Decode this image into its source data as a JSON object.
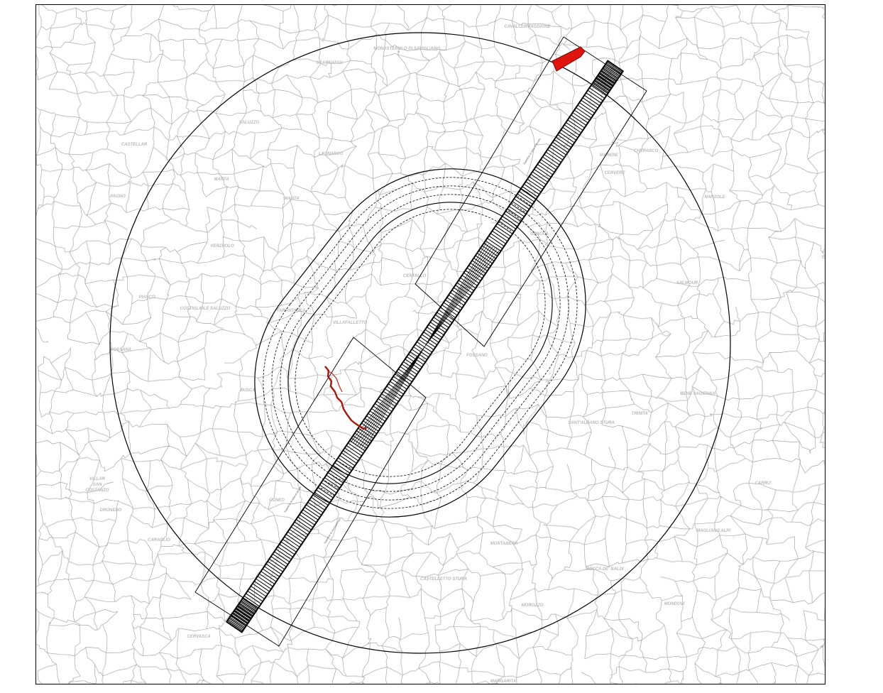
{
  "map": {
    "colors": {
      "boundary": "#a8a8a8",
      "boundary_light": "#d2d2d2",
      "surface_line": "#000000",
      "highlight": "#e0140f",
      "highlight_dark": "#a31a10",
      "label": "#b9b9b9"
    },
    "labels": [
      {
        "id": "cavallermaggiore",
        "text": "CAVALLERMAGGIORE"
      },
      {
        "id": "monasterolo",
        "text": "MONASTEROLO DI SAVIGLIANO"
      },
      {
        "id": "scarnafigi",
        "text": "SCARNAFIGI"
      },
      {
        "id": "saluzzo",
        "text": "SALUZZO"
      },
      {
        "id": "castellar",
        "text": "CASTELLAR"
      },
      {
        "id": "lagnasco",
        "text": "LAGNASCO"
      },
      {
        "id": "manta",
        "text": "MANTA"
      },
      {
        "id": "manta2",
        "text": "MANTA"
      },
      {
        "id": "pagno",
        "text": "PAGNO"
      },
      {
        "id": "verzuolo",
        "text": "VERZUOLO"
      },
      {
        "id": "genola",
        "text": "GENOLA"
      },
      {
        "id": "marene",
        "text": "MARENE"
      },
      {
        "id": "cherasco",
        "text": "CHERASCO"
      },
      {
        "id": "cervere",
        "text": "CERVERE"
      },
      {
        "id": "narzole",
        "text": "NARZOLE"
      },
      {
        "id": "salmour",
        "text": "SALMOUR"
      },
      {
        "id": "piasco",
        "text": "PIASCO"
      },
      {
        "id": "costigliole",
        "text": "COSTIGLIOLE SALUZZO"
      },
      {
        "id": "tarantasca",
        "text": "TARANTASCA"
      },
      {
        "id": "villafalletto",
        "text": "VILLAFALLETTO"
      },
      {
        "id": "centallo",
        "text": "CENTALLO"
      },
      {
        "id": "fossano",
        "text": "FOSSANO"
      },
      {
        "id": "rossana",
        "text": "ROSSANA"
      },
      {
        "id": "busca",
        "text": "BUSCA"
      },
      {
        "id": "bene",
        "text": "BENE VAGIENNA"
      },
      {
        "id": "trinita",
        "text": "TRINITA'"
      },
      {
        "id": "santalbano",
        "text": "SANT'ALBANO STURA"
      },
      {
        "id": "villar1",
        "text": "VILLAR"
      },
      {
        "id": "villar2",
        "text": "SAN"
      },
      {
        "id": "villar3",
        "text": "COSTANZO"
      },
      {
        "id": "carru",
        "text": "CARRU'"
      },
      {
        "id": "dronero",
        "text": "DRONERO"
      },
      {
        "id": "cuneo",
        "text": "CUNEO"
      },
      {
        "id": "magliano",
        "text": "MAGLIANO ALPI"
      },
      {
        "id": "caraglio",
        "text": "CARAGLIO"
      },
      {
        "id": "montanera",
        "text": "MONTANERA"
      },
      {
        "id": "morozzo",
        "text": "MOROZZO"
      },
      {
        "id": "rocca",
        "text": "ROCCA DE' BALDI"
      },
      {
        "id": "castelletto",
        "text": "CASTELLETTO STURA"
      },
      {
        "id": "mondovi",
        "text": "MONDOVI"
      },
      {
        "id": "cervasca",
        "text": "CERVASCA"
      },
      {
        "id": "margarita",
        "text": "MARGARITA"
      }
    ],
    "runway_notes": [
      {
        "id": "n1",
        "text": "Superficie di salita al decollo"
      },
      {
        "id": "n2",
        "text": "Superficie di avvicinamento"
      },
      {
        "id": "n3",
        "text": "Superficie di salita al decollo"
      },
      {
        "id": "n4",
        "text": "Superficie di avvicinamento"
      }
    ]
  }
}
